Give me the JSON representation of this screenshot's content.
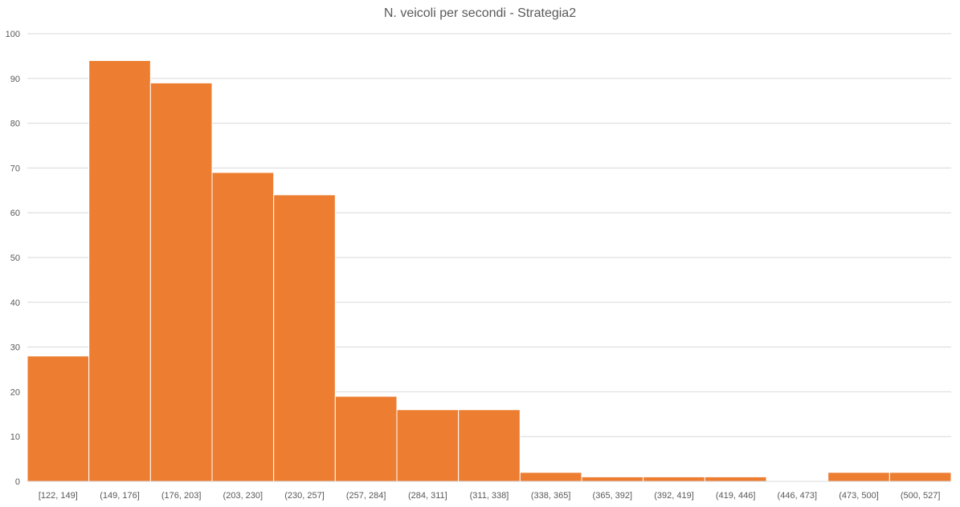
{
  "chart_data": {
    "type": "bar",
    "title": "N. veicoli per secondi - Strategia2",
    "xlabel": "",
    "ylabel": "",
    "categories": [
      "[122, 149]",
      "(149, 176]",
      "(176, 203]",
      "(203, 230]",
      "(230, 257]",
      "(257, 284]",
      "(284, 311]",
      "(311, 338]",
      "(338, 365]",
      "(365, 392]",
      "(392, 419]",
      "(419, 446]",
      "(446, 473]",
      "(473, 500]",
      "(500, 527]"
    ],
    "values": [
      28,
      94,
      89,
      69,
      64,
      19,
      16,
      16,
      2,
      1,
      1,
      1,
      0,
      2,
      2
    ],
    "ylim": [
      0,
      100
    ],
    "yticks": [
      0,
      10,
      20,
      30,
      40,
      50,
      60,
      70,
      80,
      90,
      100
    ],
    "grid": true,
    "legend": "none",
    "bar_color": "#ED7D31",
    "grid_color": "#D9D9D9",
    "axis_text_color": "#595959"
  }
}
